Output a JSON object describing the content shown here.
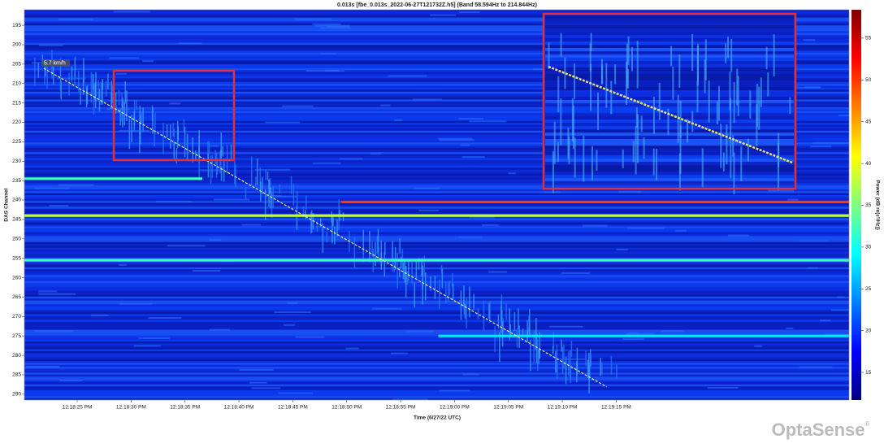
{
  "chart_data": {
    "type": "heatmap",
    "title": "0.013s [fbe_0.013s_2022-06-27T121732Z.h5] (Band 58.594Hz to 214.844Hz)",
    "x_label": "Time (6/27/22 UTC)",
    "y_label": "DAS Channel",
    "colorbar_label": "Power (dB re(ε²/Hz))",
    "xlim": [
      44300.1,
      44376.6
    ],
    "xticks": [
      {
        "value": 44305,
        "label": "12:18:25 PM"
      },
      {
        "value": 44310,
        "label": "12:18:30 PM"
      },
      {
        "value": 44315,
        "label": "12:18:35 PM"
      },
      {
        "value": 44320,
        "label": "12:18:40 PM"
      },
      {
        "value": 44325,
        "label": "12:18:45 PM"
      },
      {
        "value": 44330,
        "label": "12:18:50 PM"
      },
      {
        "value": 44335,
        "label": "12:18:55 PM"
      },
      {
        "value": 44340,
        "label": "12:19:00 PM"
      },
      {
        "value": 44345,
        "label": "12:19:05 PM"
      },
      {
        "value": 44350,
        "label": "12:19:10 PM"
      },
      {
        "value": 44355,
        "label": "12:19:15 PM"
      }
    ],
    "ylim": [
      191,
      291.5
    ],
    "yticks": [
      195,
      200,
      205,
      210,
      215,
      220,
      225,
      230,
      235,
      240,
      245,
      250,
      255,
      260,
      265,
      270,
      275,
      280,
      285,
      290
    ],
    "y_inverted": true,
    "clim": [
      11.7,
      58.4
    ],
    "cticks": [
      15,
      20,
      25,
      30,
      35,
      40,
      45,
      50,
      55
    ],
    "colormap": "jet",
    "bands": {
      "channels": [
        234.5,
        240.5,
        244,
        255.5,
        275
      ],
      "start": [
        44300.1,
        44329.5,
        44300.1,
        44300.1,
        44338.5
      ],
      "end": [
        44316.6,
        44376.6,
        44376.6,
        44376.6,
        44376.6
      ],
      "power": [
        32,
        50,
        38,
        32,
        28
      ]
    },
    "track": {
      "x": [
        44301.9,
        44354.1
      ],
      "y": [
        206.1,
        288.1
      ],
      "label": "5.7 km/h"
    },
    "logo": "OptaSense"
  }
}
